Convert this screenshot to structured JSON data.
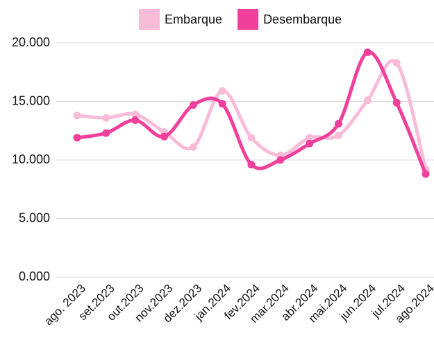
{
  "chart_data": {
    "type": "line",
    "categories": [
      "ago. 2023",
      "set.2023",
      "out.2023",
      "nov.2023",
      "dez.2023",
      "jan.2024",
      "fev.2024",
      "mar.2024",
      "abr.2024",
      "mai.2024",
      "jun.2024",
      "jul.2024",
      "ago.2024"
    ],
    "series": [
      {
        "name": "Embarque",
        "color": "#f8bcd9",
        "values": [
          13800,
          13600,
          13900,
          12400,
          11100,
          15900,
          11900,
          10400,
          11900,
          12100,
          15100,
          18300,
          9200
        ]
      },
      {
        "name": "Desembarque",
        "color": "#f13f9c",
        "values": [
          11900,
          12300,
          13400,
          12000,
          14700,
          14800,
          9600,
          10000,
          11400,
          13100,
          19200,
          14900,
          8800
        ]
      }
    ],
    "ylim": [
      0,
      20000
    ],
    "yticks": [
      {
        "value": 0,
        "label": "0.000"
      },
      {
        "value": 5000,
        "label": "5.000"
      },
      {
        "value": 10000,
        "label": "10.000"
      },
      {
        "value": 15000,
        "label": "15.000"
      },
      {
        "value": 20000,
        "label": "20.000"
      }
    ],
    "grid": true,
    "legend": "top"
  }
}
